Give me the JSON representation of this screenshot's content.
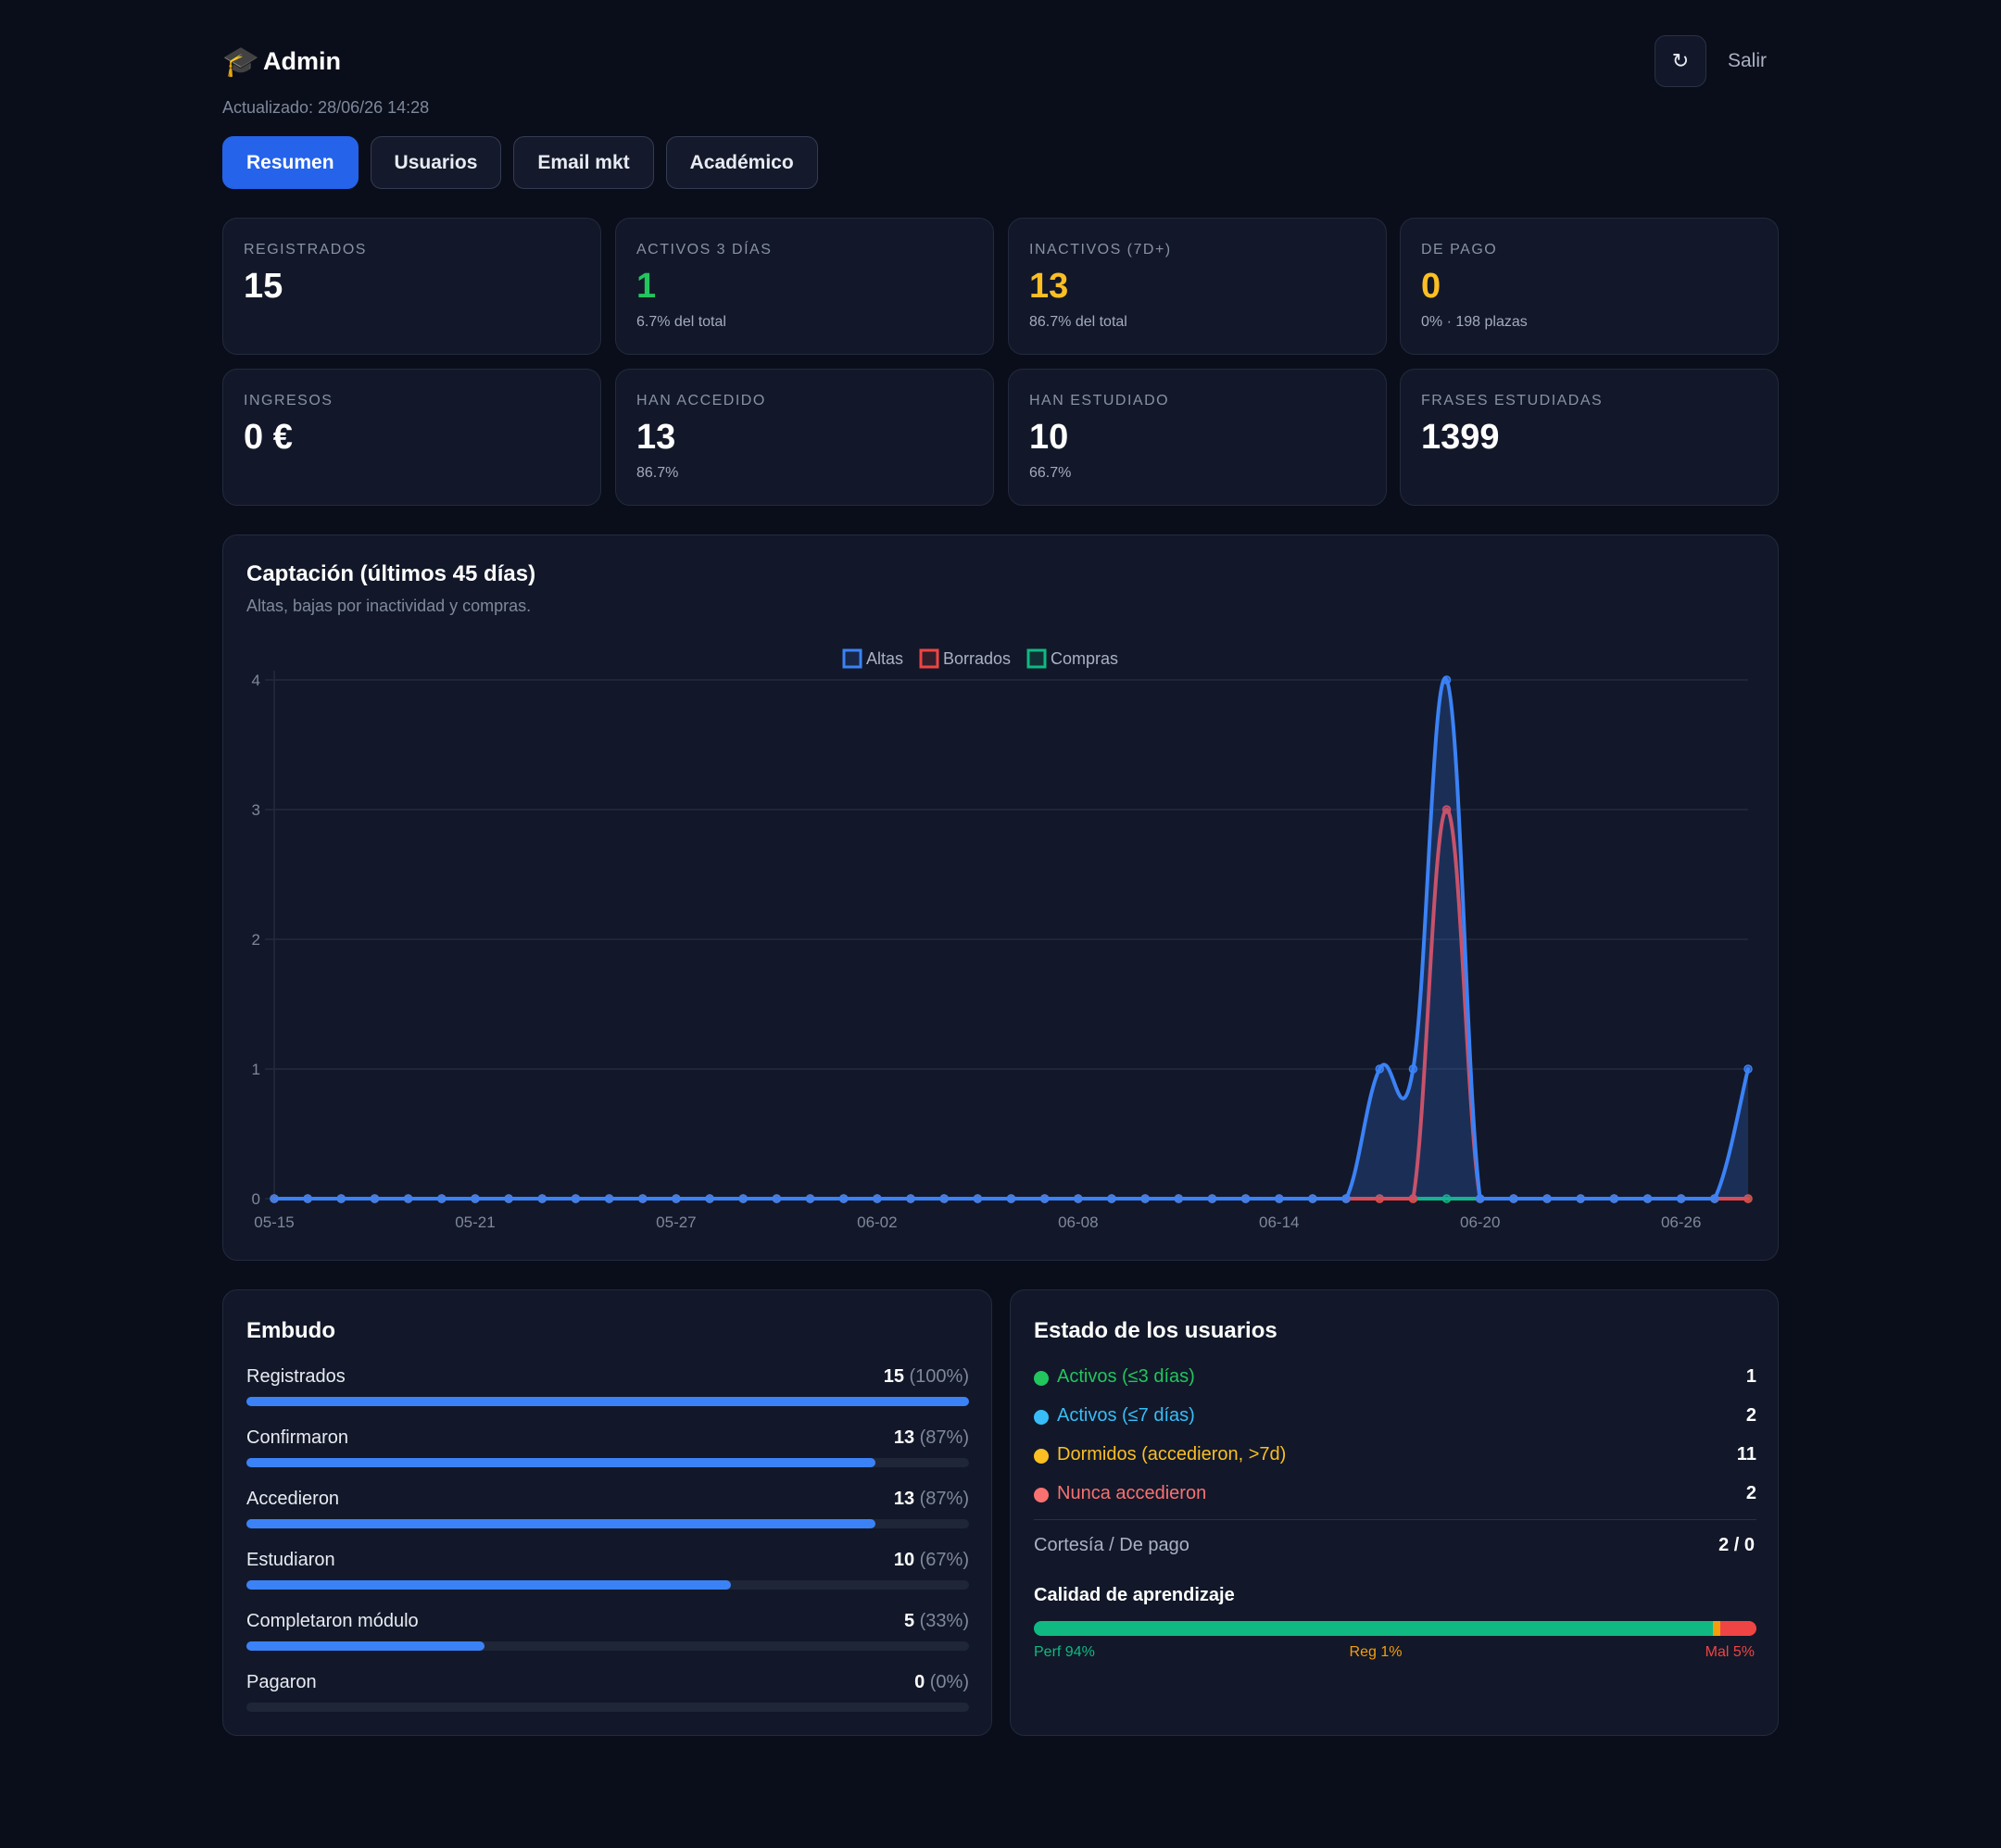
{
  "header": {
    "logo_icon": "graduation-cap-icon",
    "logo_glyph": "🎓",
    "title": "Admin",
    "refresh_icon": "refresh-icon",
    "refresh_glyph": "↻",
    "logout_label": "Salir",
    "updated": "Actualizado: 28/06/26 14:28"
  },
  "tabs": [
    {
      "label": "Resumen",
      "active": true
    },
    {
      "label": "Usuarios",
      "active": false
    },
    {
      "label": "Email mkt",
      "active": false
    },
    {
      "label": "Académico",
      "active": false
    }
  ],
  "stats": [
    {
      "label": "REGISTRADOS",
      "value": "15",
      "sub": "",
      "tone": "white"
    },
    {
      "label": "ACTIVOS 3 DÍAS",
      "value": "1",
      "sub": "6.7% del total",
      "tone": "green"
    },
    {
      "label": "INACTIVOS (7D+)",
      "value": "13",
      "sub": "86.7% del total",
      "tone": "yellow"
    },
    {
      "label": "DE PAGO",
      "value": "0",
      "sub": "0% · 198 plazas",
      "tone": "yellow"
    },
    {
      "label": "INGRESOS",
      "value": "0 €",
      "sub": "",
      "tone": "white"
    },
    {
      "label": "HAN ACCEDIDO",
      "value": "13",
      "sub": "86.7%",
      "tone": "white"
    },
    {
      "label": "HAN ESTUDIADO",
      "value": "10",
      "sub": "66.7%",
      "tone": "white"
    },
    {
      "label": "FRASES ESTUDIADAS",
      "value": "1399",
      "sub": "",
      "tone": "white"
    }
  ],
  "chart": {
    "title": "Captación (últimos 45 días)",
    "subtitle": "Altas, bajas por inactividad y compras."
  },
  "chart_data": {
    "type": "line",
    "title": "Captación (últimos 45 días)",
    "subtitle": "Altas, bajas por inactividad y compras.",
    "x_tick_labels": [
      "05-15",
      "05-21",
      "05-27",
      "06-02",
      "06-08",
      "06-14",
      "06-20",
      "06-26"
    ],
    "x_start": "05-15",
    "x_count": 45,
    "ylim": [
      0,
      4
    ],
    "y_ticks": [
      "0",
      "1",
      "2",
      "3",
      "4"
    ],
    "grid": true,
    "legend_position": "top-center",
    "series": [
      {
        "name": "Altas",
        "color": "#3b82f6",
        "fill": true,
        "values": [
          0,
          0,
          0,
          0,
          0,
          0,
          0,
          0,
          0,
          0,
          0,
          0,
          0,
          0,
          0,
          0,
          0,
          0,
          0,
          0,
          0,
          0,
          0,
          0,
          0,
          0,
          0,
          0,
          0,
          0,
          0,
          0,
          0,
          1,
          1,
          4,
          0,
          0,
          0,
          0,
          0,
          0,
          0,
          0,
          1
        ]
      },
      {
        "name": "Borrados",
        "color": "#ef4444",
        "fill": false,
        "values": [
          0,
          0,
          0,
          0,
          0,
          0,
          0,
          0,
          0,
          0,
          0,
          0,
          0,
          0,
          0,
          0,
          0,
          0,
          0,
          0,
          0,
          0,
          0,
          0,
          0,
          0,
          0,
          0,
          0,
          0,
          0,
          0,
          0,
          0,
          0,
          3,
          0,
          0,
          0,
          0,
          0,
          0,
          0,
          0,
          0
        ]
      },
      {
        "name": "Compras",
        "color": "#10b981",
        "fill": false,
        "values": [
          0,
          0,
          0,
          0,
          0,
          0,
          0,
          0,
          0,
          0,
          0,
          0,
          0,
          0,
          0,
          0,
          0,
          0,
          0,
          0,
          0,
          0,
          0,
          0,
          0,
          0,
          0,
          0,
          0,
          0,
          0,
          0,
          0,
          0,
          0,
          0,
          0,
          0,
          0,
          0,
          0,
          0,
          0,
          0,
          0
        ]
      }
    ]
  },
  "funnel": {
    "title": "Embudo",
    "rows": [
      {
        "label": "Registrados",
        "count": "15",
        "pct": "(100%)",
        "ratio": 1.0
      },
      {
        "label": "Confirmaron",
        "count": "13",
        "pct": "(87%)",
        "ratio": 0.87
      },
      {
        "label": "Accedieron",
        "count": "13",
        "pct": "(87%)",
        "ratio": 0.87
      },
      {
        "label": "Estudiaron",
        "count": "10",
        "pct": "(67%)",
        "ratio": 0.67
      },
      {
        "label": "Completaron módulo",
        "count": "5",
        "pct": "(33%)",
        "ratio": 0.33
      },
      {
        "label": "Pagaron",
        "count": "0",
        "pct": "(0%)",
        "ratio": 0
      }
    ]
  },
  "status": {
    "title": "Estado de los usuarios",
    "rows": [
      {
        "label": "Activos (≤3 días)",
        "count": "1",
        "color": "#22c55e"
      },
      {
        "label": "Activos (≤7 días)",
        "count": "2",
        "color": "#38bdf8"
      },
      {
        "label": "Dormidos (accedieron, >7d)",
        "count": "11",
        "color": "#fbbf24"
      },
      {
        "label": "Nunca accedieron",
        "count": "2",
        "color": "#f87171"
      }
    ],
    "courtesy_label": "Cortesía / De pago",
    "courtesy_value": "2 / 0",
    "quality_title": "Calidad de aprendizaje",
    "quality": [
      {
        "label": "Perf 94%",
        "ratio": 0.94,
        "color": "#10b981"
      },
      {
        "label": "Reg 1%",
        "ratio": 0.01,
        "color": "#f59e0b"
      },
      {
        "label": "Mal 5%",
        "ratio": 0.05,
        "color": "#ef4444"
      }
    ]
  }
}
